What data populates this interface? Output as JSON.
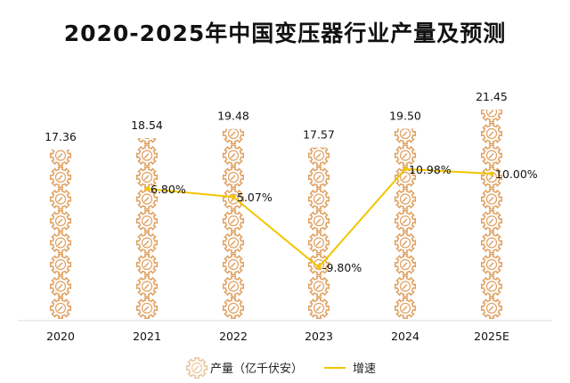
{
  "chart_data": {
    "type": "bar+line",
    "title": "2020-2025年中国变压器行业产量及预测",
    "categories": [
      "2020",
      "2021",
      "2022",
      "2023",
      "2024",
      "2025E"
    ],
    "series": [
      {
        "name": "产量（亿千伏安）",
        "type": "pictograph-bar",
        "values": [
          17.36,
          18.54,
          19.48,
          17.57,
          19.5,
          21.45
        ],
        "labels": [
          "17.36",
          "18.54",
          "19.48",
          "17.57",
          "19.50",
          "21.45"
        ],
        "color": "#e0a060"
      },
      {
        "name": "增速",
        "type": "line",
        "values": [
          null,
          6.8,
          5.07,
          -9.8,
          10.98,
          10.0
        ],
        "labels": [
          "",
          "6.80%",
          "5.07%",
          "-9.80%",
          "10.98%",
          "10.00%"
        ],
        "color": "#f2c500"
      }
    ],
    "legend": "bottom",
    "grid": false
  }
}
